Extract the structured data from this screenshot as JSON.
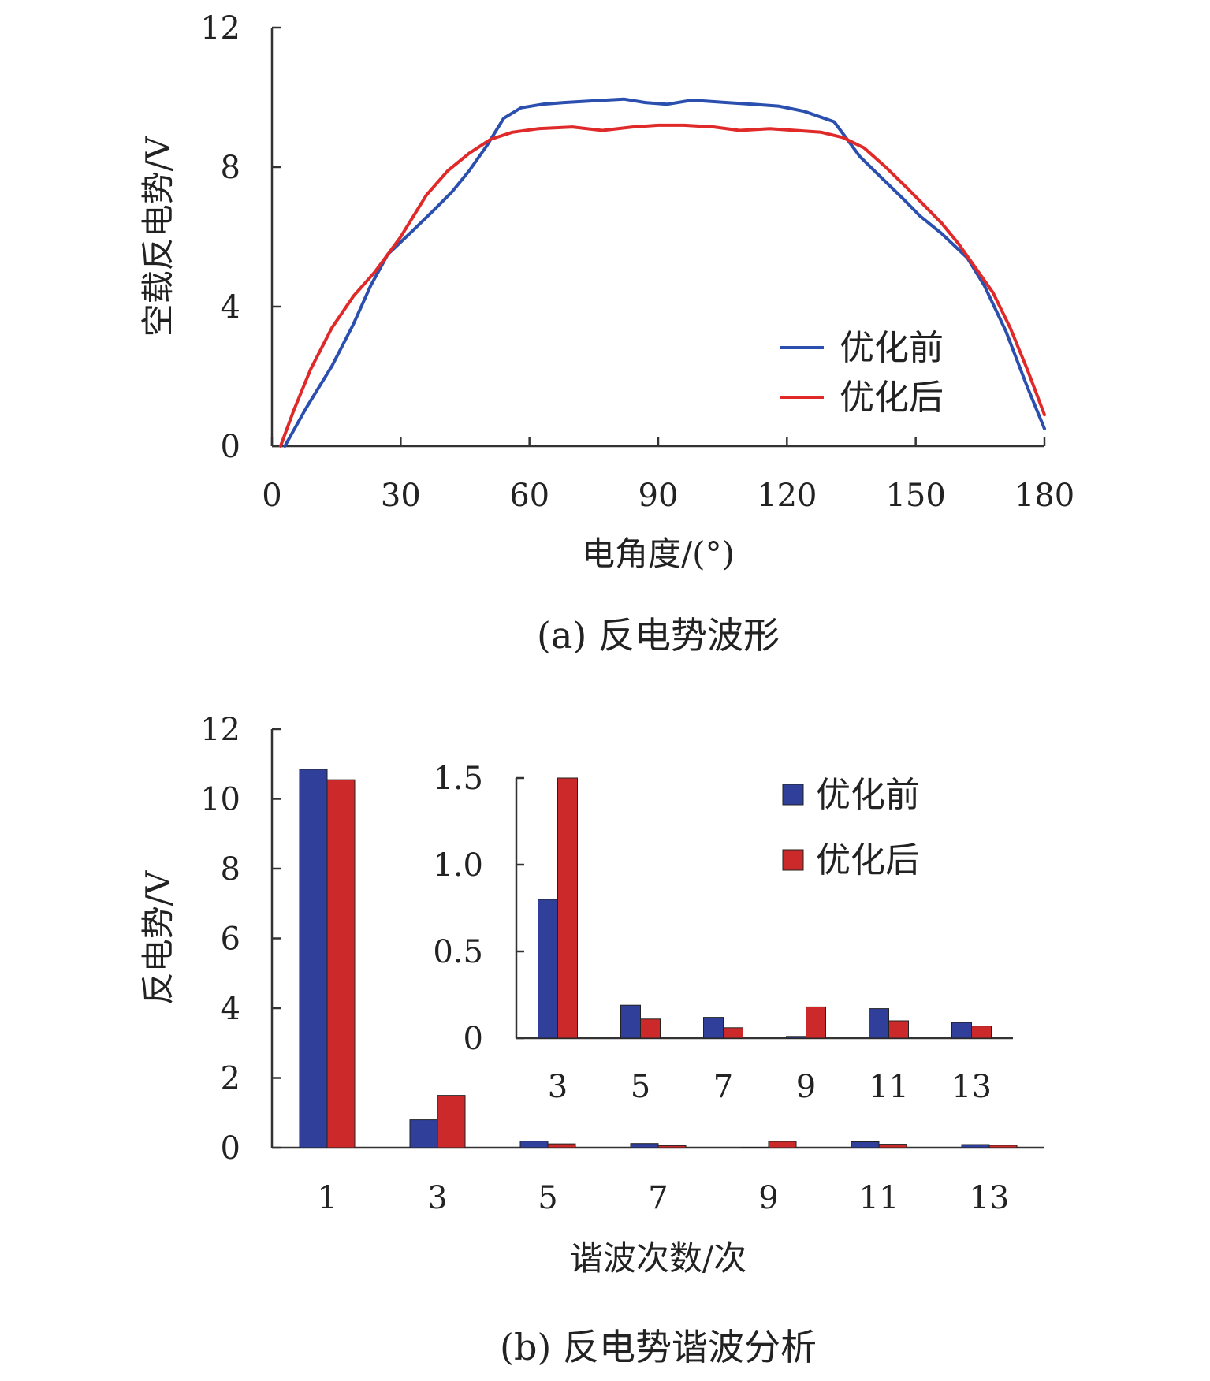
{
  "chart_data": [
    {
      "type": "line",
      "caption": "(a) 反电势波形",
      "xlabel": "电角度/(°)",
      "ylabel": "空载反电势/V",
      "xlim": [
        0,
        180
      ],
      "ylim": [
        0,
        12
      ],
      "xticks": [
        "0",
        "30",
        "60",
        "90",
        "120",
        "150",
        "180"
      ],
      "yticks": [
        "0",
        "4",
        "8",
        "12"
      ],
      "legend": "right",
      "series": [
        {
          "name": "优化前",
          "color": "#2b4fae",
          "x": [
            3,
            8,
            14,
            19,
            23,
            27,
            33,
            38,
            42,
            46,
            50,
            54,
            58,
            63,
            68,
            75,
            82,
            87,
            92,
            97,
            100,
            106,
            112,
            118,
            124,
            131,
            134,
            137,
            142,
            147,
            151,
            156,
            162,
            166,
            171,
            176,
            180
          ],
          "y": [
            0,
            1.1,
            2.3,
            3.5,
            4.6,
            5.5,
            6.2,
            6.8,
            7.3,
            7.9,
            8.6,
            9.4,
            9.7,
            9.8,
            9.85,
            9.9,
            9.95,
            9.85,
            9.8,
            9.9,
            9.9,
            9.85,
            9.8,
            9.75,
            9.6,
            9.3,
            8.8,
            8.3,
            7.7,
            7.1,
            6.6,
            6.1,
            5.4,
            4.6,
            3.3,
            1.7,
            0.5
          ]
        },
        {
          "name": "优化后",
          "color": "#e02a2a",
          "x": [
            2,
            5,
            9,
            14,
            19,
            24,
            30,
            36,
            41,
            46,
            51,
            56,
            62,
            70,
            77,
            84,
            90,
            96,
            103,
            109,
            116,
            122,
            128,
            133,
            138,
            143,
            148,
            152,
            156,
            160,
            164,
            168,
            172,
            176,
            180
          ],
          "y": [
            0,
            1.0,
            2.2,
            3.4,
            4.3,
            5.0,
            6.0,
            7.2,
            7.9,
            8.4,
            8.8,
            9.0,
            9.1,
            9.15,
            9.05,
            9.15,
            9.2,
            9.2,
            9.15,
            9.05,
            9.1,
            9.05,
            9.0,
            8.85,
            8.55,
            8.0,
            7.4,
            6.9,
            6.4,
            5.8,
            5.1,
            4.4,
            3.4,
            2.2,
            0.9
          ]
        }
      ]
    },
    {
      "type": "bar",
      "caption": "(b) 反电势谐波分析",
      "xlabel": "谐波次数/次",
      "ylabel": "反电势/V",
      "categories": [
        "1",
        "3",
        "5",
        "7",
        "9",
        "11",
        "13"
      ],
      "ylim": [
        0,
        12
      ],
      "yticks": [
        "0",
        "2",
        "4",
        "6",
        "8",
        "10",
        "12"
      ],
      "legend": "top-right",
      "series": [
        {
          "name": "优化前",
          "color": "#2f3f9a",
          "values": [
            10.85,
            0.8,
            0.19,
            0.12,
            0.01,
            0.17,
            0.09
          ]
        },
        {
          "name": "优化后",
          "color": "#cc2a2a",
          "values": [
            10.55,
            1.5,
            0.11,
            0.06,
            0.18,
            0.1,
            0.07
          ]
        }
      ],
      "inset": {
        "type": "bar",
        "categories": [
          "3",
          "5",
          "7",
          "9",
          "11",
          "13"
        ],
        "ylim": [
          0,
          1.5
        ],
        "yticks": [
          "0",
          "0.5",
          "1.0",
          "1.5"
        ]
      }
    }
  ]
}
